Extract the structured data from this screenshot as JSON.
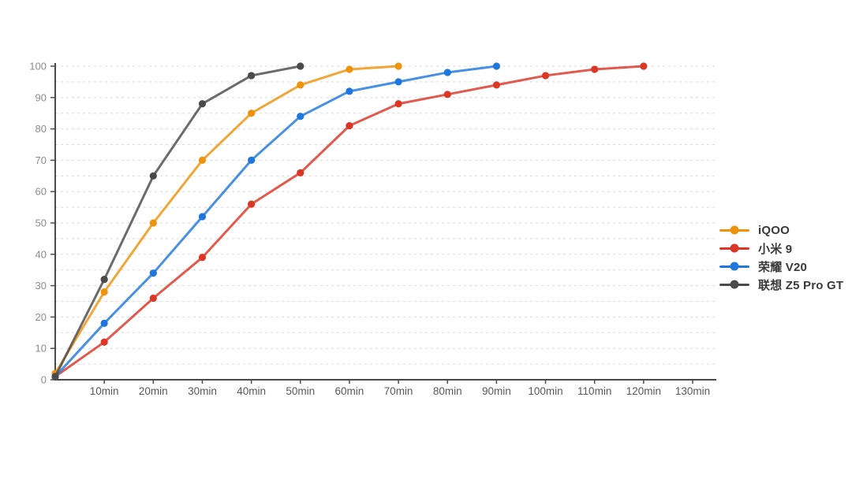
{
  "chart_data": {
    "type": "line",
    "title": "",
    "xlabel": "",
    "ylabel": "",
    "x_unit": "min",
    "xlim": [
      0,
      135
    ],
    "ylim": [
      0,
      100
    ],
    "grid": "horizontal dashed lines every 5 units",
    "legend_position": "right-middle",
    "x_tick_values": [
      10,
      20,
      30,
      40,
      50,
      60,
      70,
      80,
      90,
      100,
      110,
      120,
      130
    ],
    "x_tick_labels": [
      "10min",
      "20min",
      "30min",
      "40min",
      "50min",
      "60min",
      "70min",
      "80min",
      "90min",
      "100min",
      "110min",
      "120min",
      "130min"
    ],
    "y_tick_values": [
      0,
      10,
      20,
      30,
      40,
      50,
      60,
      70,
      80,
      90,
      100
    ],
    "y_tick_labels": [
      "0",
      "10",
      "20",
      "30",
      "40",
      "50",
      "60",
      "70",
      "80",
      "90",
      "100"
    ],
    "series": [
      {
        "name": "iQOO",
        "color": "#EE930B",
        "x": [
          0,
          10,
          20,
          30,
          40,
          50,
          60,
          70
        ],
        "values": [
          2,
          28,
          50,
          70,
          85,
          94,
          99,
          100
        ]
      },
      {
        "name": "小米 9",
        "color": "#DC3626",
        "x": [
          0,
          10,
          20,
          30,
          40,
          50,
          60,
          70,
          80,
          90,
          100,
          110,
          120
        ],
        "values": [
          1,
          12,
          26,
          39,
          56,
          66,
          81,
          88,
          91,
          94,
          97,
          99,
          100
        ]
      },
      {
        "name": "荣耀 V20",
        "color": "#1F77DE",
        "x": [
          0,
          10,
          20,
          30,
          40,
          50,
          60,
          70,
          80,
          90
        ],
        "values": [
          1,
          18,
          34,
          52,
          70,
          84,
          92,
          95,
          98,
          100
        ]
      },
      {
        "name": "联想 Z5 Pro GT",
        "color": "#4A4A4A",
        "x": [
          0,
          10,
          20,
          30,
          40,
          50
        ],
        "values": [
          1,
          32,
          65,
          88,
          97,
          100
        ]
      }
    ],
    "colors": {
      "axis": "#4a4a4a",
      "grid": "#d9d9d9",
      "y_tick_text": "#8c8c8c",
      "x_tick_text": "#595959",
      "legend_text": "#3a3a3a",
      "background": "#ffffff"
    }
  }
}
